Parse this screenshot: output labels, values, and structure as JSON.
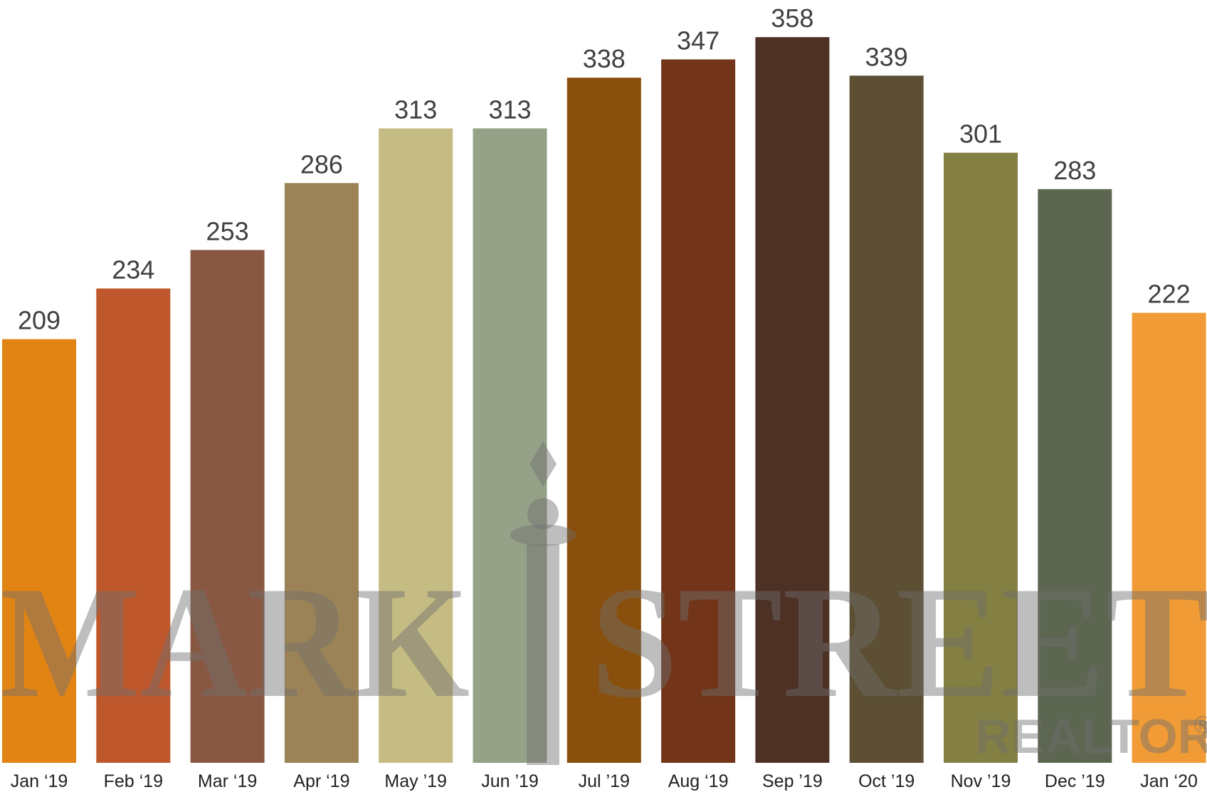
{
  "chart_data": {
    "type": "bar",
    "categories": [
      "Jan ‘19",
      "Feb ‘19",
      "Mar ‘19",
      "Apr ‘19",
      "May ’19",
      "Jun ’19",
      "Jul ’19",
      "Aug ‘19",
      "Sep ’19",
      "Oct ’19",
      "Nov ’19",
      "Dec ’19",
      "Jan ‘20"
    ],
    "values": [
      209,
      234,
      253,
      286,
      313,
      313,
      338,
      347,
      358,
      339,
      301,
      283,
      222
    ],
    "colors": [
      "#E28414",
      "#BE582C",
      "#895842",
      "#9C8357",
      "#C4BC83",
      "#96A288",
      "#894F0C",
      "#72351A",
      "#4E3125",
      "#5C4F34",
      "#847F42",
      "#5C6651",
      "#F09B35"
    ],
    "ylim": [
      0,
      370
    ],
    "grid": false,
    "data_labels": true
  },
  "watermark": {
    "left_word": "MARK",
    "right_word": "STREET",
    "sub_word": "REALTOR",
    "registered_mark": "®"
  }
}
